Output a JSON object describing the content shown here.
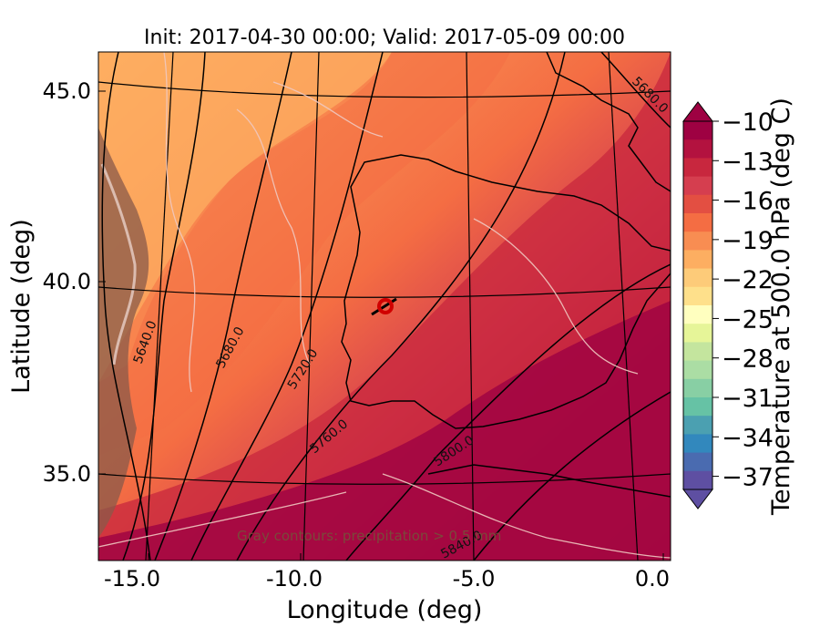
{
  "title": "Init: 2017-04-30 00:00; Valid: 2017-05-09 00:00",
  "xlabel": "Longitude (deg)",
  "ylabel": "Latitude (deg)",
  "colorbar": {
    "label": "Temperature at 500.0 hPa (deg C)",
    "ticks": [
      "−10",
      "−13",
      "−16",
      "−19",
      "−22",
      "−25",
      "−28",
      "−31",
      "−34",
      "−37"
    ],
    "colors": [
      "#9e0142",
      "#b3123f",
      "#c8273e",
      "#d53e4f",
      "#e34f42",
      "#f46d43",
      "#f88d52",
      "#fdae61",
      "#fdcb79",
      "#fee08b",
      "#ffffbf",
      "#e6f598",
      "#c4e59e",
      "#abdda4",
      "#88cfa4",
      "#66c2a5",
      "#4ba0b1",
      "#3288bd",
      "#4a6bb0",
      "#5e4fa2"
    ]
  },
  "annotation": "Gray contours: precipitation > 0.5 mm",
  "contour_labels": [
    "5640.0",
    "5680.0",
    "5720.0",
    "5760.0",
    "5800.0",
    "5840.0",
    "5680.0"
  ],
  "marker": {
    "type": "circle",
    "color": "#d00000",
    "lon": -7.6,
    "lat": 39.3
  },
  "chart_data": {
    "type": "heatmap",
    "title": "Init: 2017-04-30 00:00; Valid: 2017-05-09 00:00",
    "xlabel": "Longitude (deg)",
    "ylabel": "Latitude (deg)",
    "x_ticks": [
      "-15.0",
      "-10.0",
      "-5.0",
      "0.0"
    ],
    "y_ticks": [
      "45.0",
      "40.0",
      "35.0"
    ],
    "xlim": [
      -16,
      0
    ],
    "ylim": [
      33,
      46
    ],
    "colorbar_range": [
      -38,
      -10
    ],
    "colorbar_label": "Temperature at 500.0 hPa (deg C)",
    "geopotential_contours": [
      5640.0,
      5680.0,
      5720.0,
      5760.0,
      5800.0,
      5840.0
    ]
  }
}
